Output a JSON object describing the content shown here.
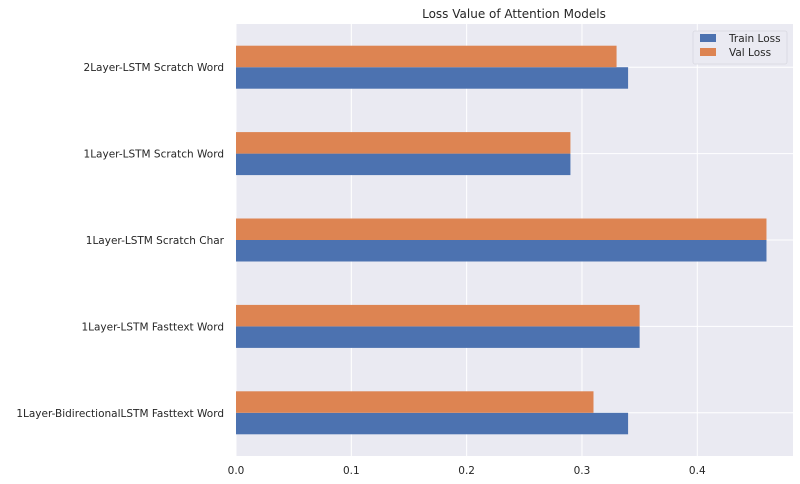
{
  "chart_data": {
    "type": "bar",
    "orientation": "horizontal",
    "title": "Loss Value of Attention Models",
    "xlabel": "",
    "ylabel": "",
    "categories": [
      "1Layer-BidirectionalLSTM Fasttext Word",
      "1Layer-LSTM Fasttext Word",
      "1Layer-LSTM Scratch Char",
      "1Layer-LSTM Scratch Word",
      "2Layer-LSTM Scratch Word"
    ],
    "series": [
      {
        "name": "Train Loss",
        "color": "#4c72b0",
        "values": [
          0.34,
          0.35,
          0.46,
          0.29,
          0.34
        ]
      },
      {
        "name": "Val Loss",
        "color": "#dd8452",
        "values": [
          0.31,
          0.35,
          0.46,
          0.29,
          0.33
        ]
      }
    ],
    "xlim": [
      0,
      0.483
    ],
    "xticks": [
      0.0,
      0.1,
      0.2,
      0.3,
      0.4
    ],
    "xtick_labels": [
      "0.0",
      "0.1",
      "0.2",
      "0.3",
      "0.4"
    ],
    "grid": true,
    "legend": "top-right",
    "background": "#eaeaf2",
    "grid_color": "#ffffff"
  }
}
